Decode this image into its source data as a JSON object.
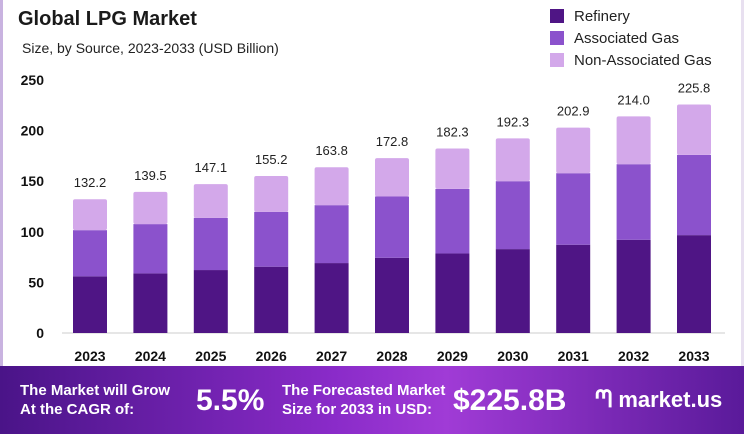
{
  "chart_data": {
    "type": "bar",
    "stacked": true,
    "title": "Global LPG Market",
    "subtitle": "Size, by Source, 2023-2033 (USD Billion)",
    "categories": [
      "2023",
      "2024",
      "2025",
      "2026",
      "2027",
      "2028",
      "2029",
      "2030",
      "2031",
      "2032",
      "2033"
    ],
    "series": [
      {
        "name": "Refinery",
        "color": "#4f1585",
        "values": [
          56.0,
          58.9,
          62.2,
          65.5,
          69.1,
          74.3,
          78.6,
          82.9,
          87.2,
          92.1,
          96.7
        ]
      },
      {
        "name": "Associated Gas",
        "color": "#8b52cc",
        "values": [
          45.6,
          48.7,
          51.6,
          54.2,
          57.2,
          60.6,
          63.8,
          67.1,
          70.7,
          74.7,
          79.3
        ]
      },
      {
        "name": "Non-Associated Gas",
        "color": "#d3a8ea",
        "values": [
          30.6,
          31.9,
          33.3,
          35.5,
          37.5,
          37.9,
          39.9,
          42.3,
          45.0,
          47.2,
          49.8
        ]
      }
    ],
    "totals": [
      "132.2",
      "139.5",
      "147.1",
      "155.2",
      "163.8",
      "172.8",
      "182.3",
      "192.3",
      "202.9",
      "214.0",
      "225.8"
    ],
    "yticks": [
      "0",
      "50",
      "100",
      "150",
      "200",
      "250"
    ],
    "ylim": [
      0,
      250
    ],
    "grid": false,
    "legend": "top-right"
  },
  "banner": {
    "cagr_label_1": "The Market will Grow",
    "cagr_label_2": "At the CAGR of:",
    "cagr": "5.5%",
    "forecast_label_1": "The Forecasted Market",
    "forecast_label_2": "Size for 2033 in USD:",
    "forecast": "$225.8B",
    "logo": "market.us"
  }
}
